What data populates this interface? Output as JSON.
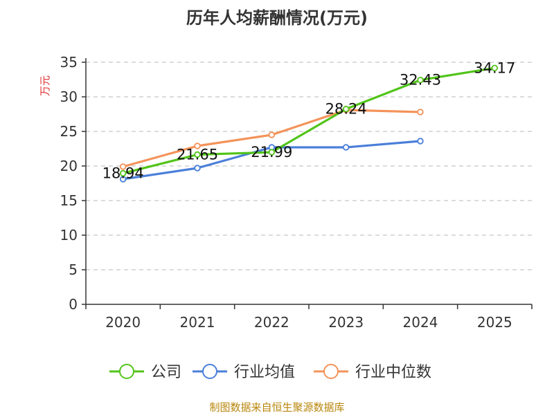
{
  "chart_data": {
    "type": "line",
    "title": "历年人均薪酬情况(万元)",
    "ylabel": "万元",
    "xlabel": "",
    "ylim": [
      0,
      35
    ],
    "yticks": [
      0,
      5,
      10,
      15,
      20,
      25,
      30,
      35
    ],
    "categories": [
      "2020",
      "2021",
      "2022",
      "2023",
      "2024",
      "2025"
    ],
    "grid": true,
    "legend_position": "bottom",
    "series": [
      {
        "name": "公司",
        "color": "#52c41a",
        "values": [
          18.94,
          21.65,
          21.99,
          28.24,
          32.43,
          34.17
        ],
        "labeled": true
      },
      {
        "name": "行业均值",
        "color": "#4a7fd9",
        "values": [
          18.1,
          19.7,
          22.7,
          22.7,
          23.6,
          null
        ],
        "labeled": false
      },
      {
        "name": "行业中位数",
        "color": "#f4935a",
        "values": [
          19.9,
          22.9,
          24.5,
          28.1,
          27.8,
          null
        ],
        "labeled": false
      }
    ]
  },
  "source": "制图数据来自恒生聚源数据库"
}
